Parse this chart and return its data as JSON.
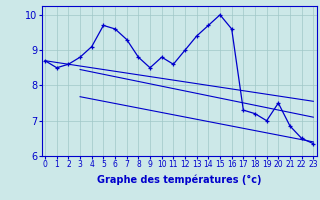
{
  "xlabel": "Graphe des températures (°c)",
  "background_color": "#cce8e8",
  "line_color": "#0000cc",
  "hours": [
    0,
    1,
    2,
    3,
    4,
    5,
    6,
    7,
    8,
    9,
    10,
    11,
    12,
    13,
    14,
    15,
    16,
    17,
    18,
    19,
    20,
    21,
    22,
    23
  ],
  "temp_main": [
    8.7,
    8.5,
    8.6,
    8.8,
    9.1,
    9.7,
    9.6,
    9.3,
    8.8,
    8.5,
    8.8,
    8.6,
    9.0,
    9.4,
    9.7,
    10.0,
    9.6,
    7.3,
    7.2,
    7.0,
    7.5,
    6.85,
    6.5,
    6.35
  ],
  "trend_line1_x": [
    0,
    23
  ],
  "trend_line1_y": [
    8.7,
    7.55
  ],
  "trend_line2_x": [
    3,
    23
  ],
  "trend_line2_y": [
    8.45,
    7.1
  ],
  "trend_line3_x": [
    3,
    23
  ],
  "trend_line3_y": [
    7.68,
    6.4
  ],
  "ylim": [
    6.0,
    10.25
  ],
  "xlim": [
    -0.3,
    23.3
  ],
  "yticks": [
    6,
    7,
    8,
    9,
    10
  ],
  "grid_color": "#a0c8c8",
  "marker": "+"
}
